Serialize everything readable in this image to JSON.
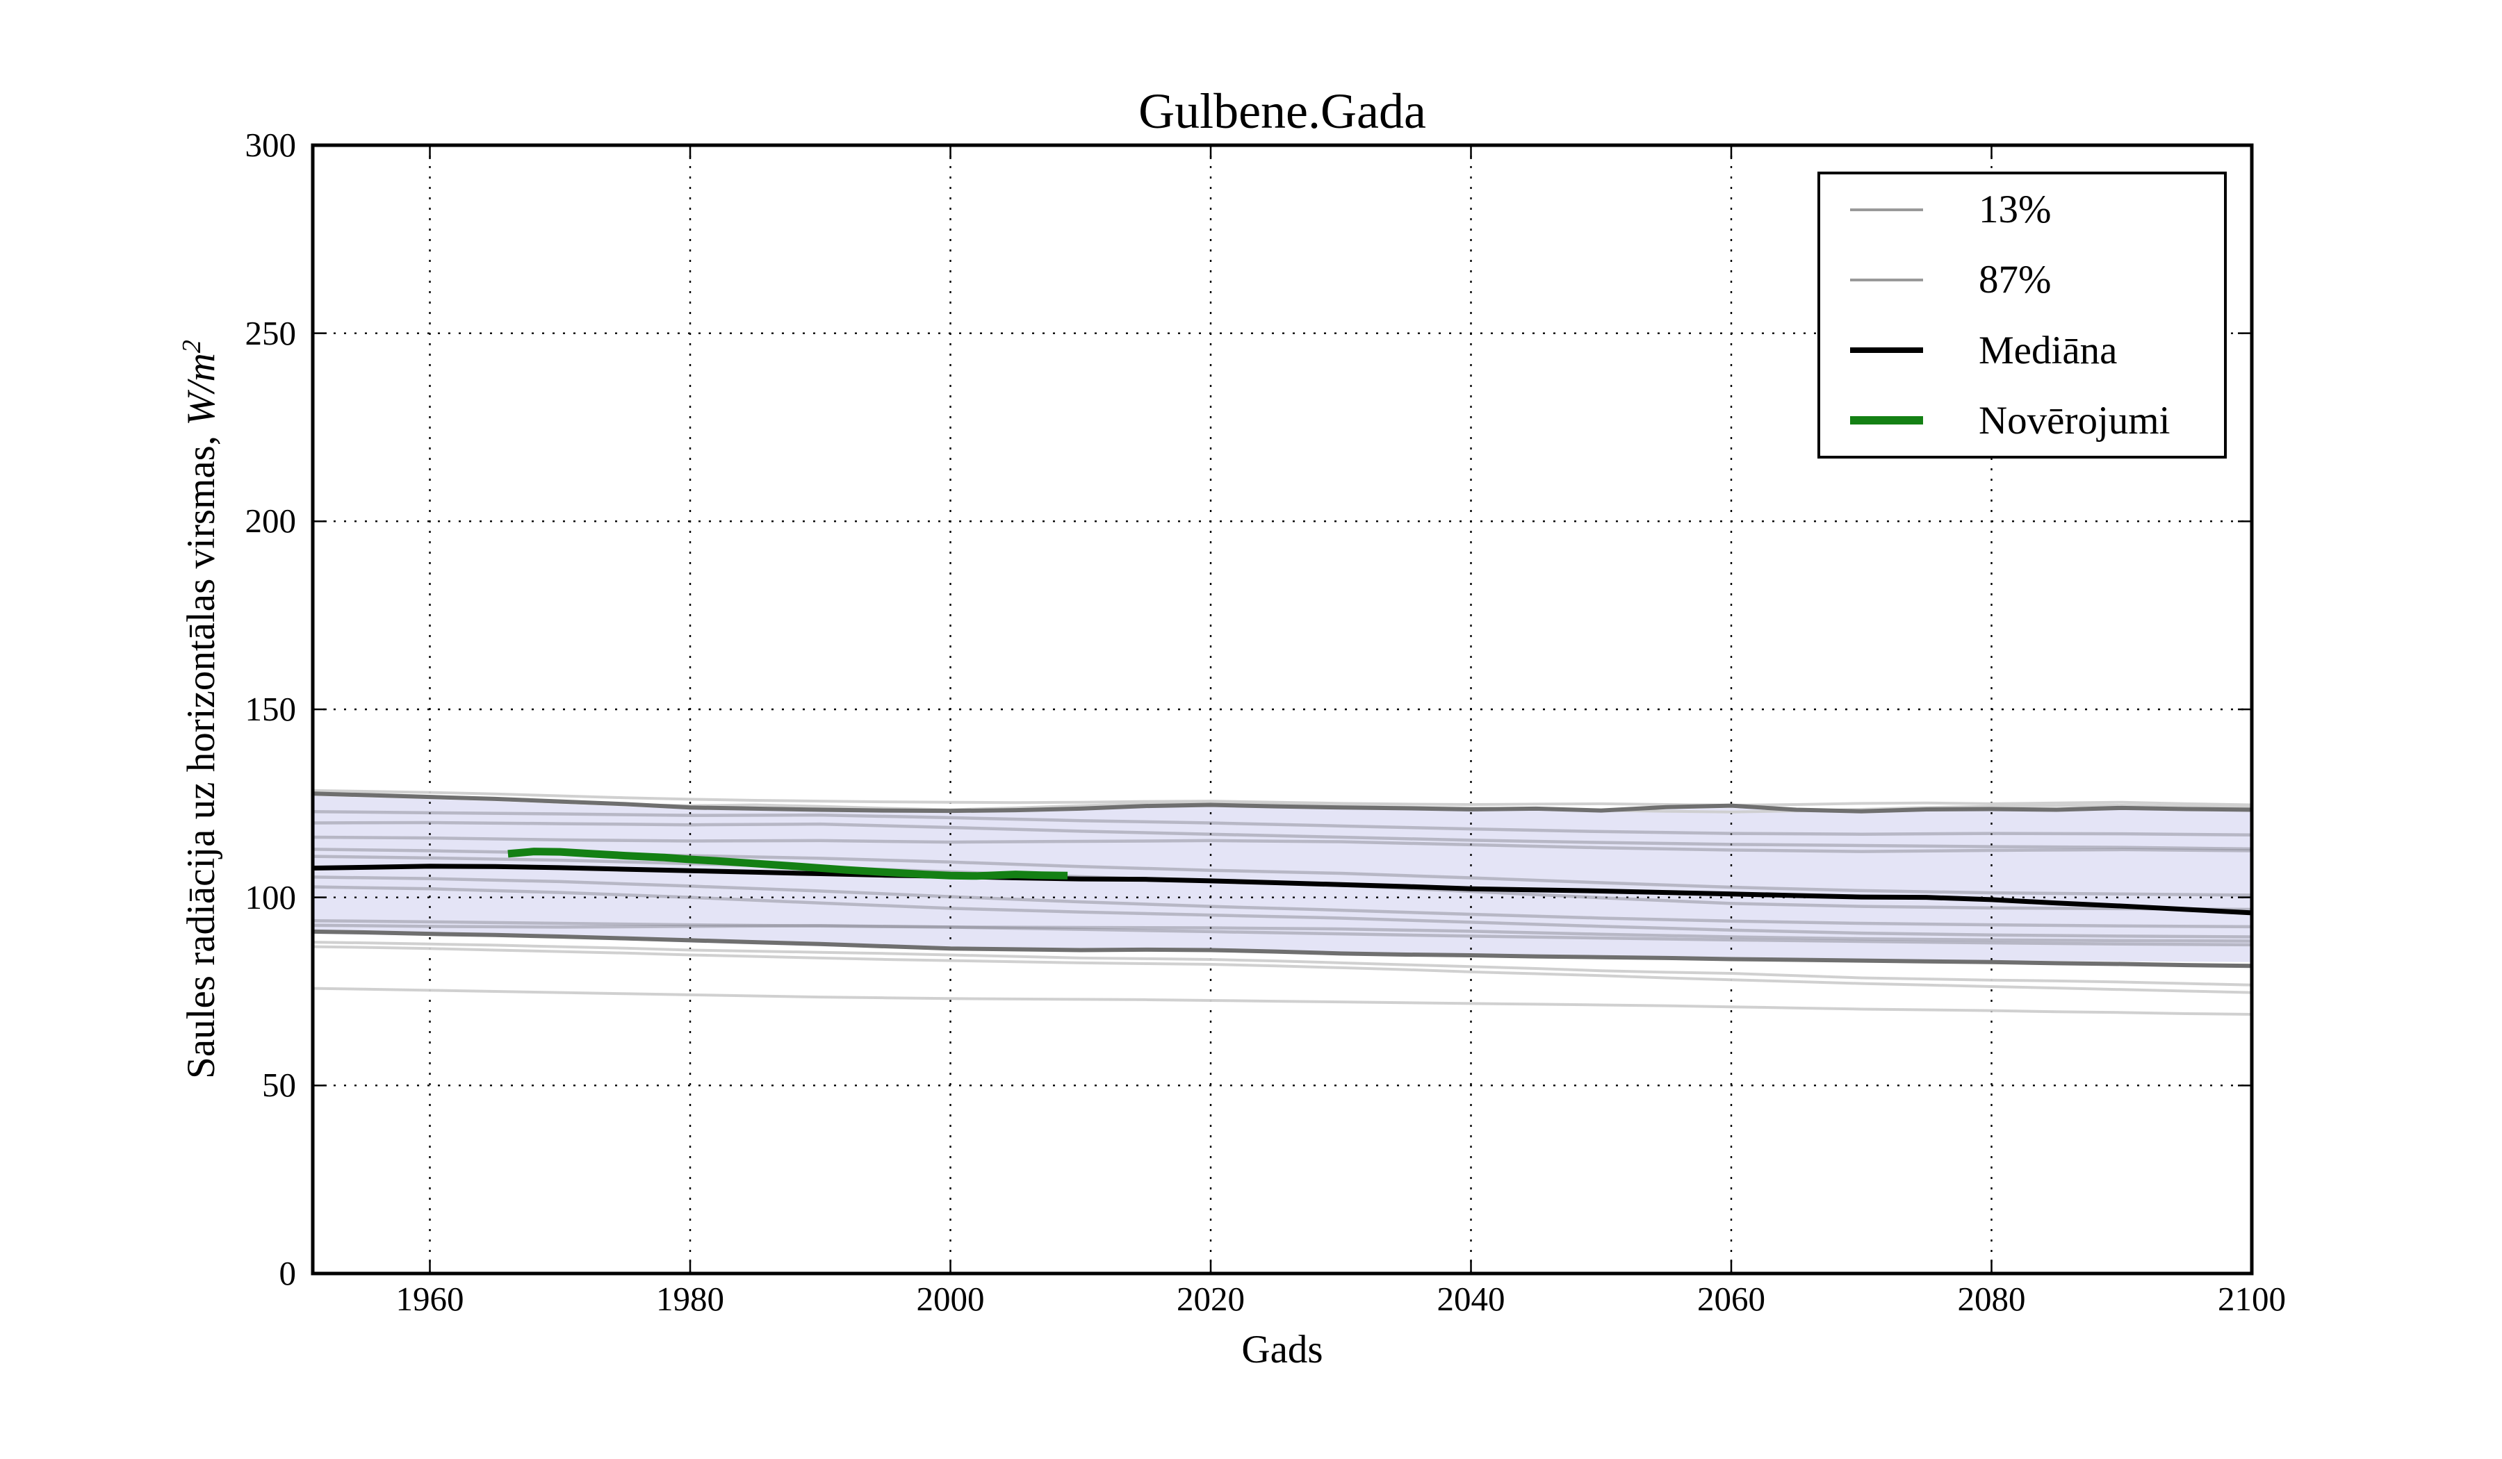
{
  "title": "Gulbene.Gada",
  "legend": {
    "position": "upper right",
    "items": [
      {
        "label": "13%",
        "color": "#999999",
        "line_width": 4
      },
      {
        "label": "87%",
        "color": "#999999",
        "line_width": 4
      },
      {
        "label": "Mediāna",
        "color": "#000000",
        "line_width": 8
      },
      {
        "label": "Novērojumi",
        "color": "#148014",
        "line_width": 12
      }
    ]
  },
  "colors": {
    "background": "#ffffff",
    "band_fill": "#E4E4F6",
    "light_gray_line": "#CDCDCD",
    "medium_gray_line": "#8A8A94",
    "dark_gray_line": "#6F6F6F",
    "median_line": "#000000",
    "observations_line": "#148014",
    "grid": "#000000",
    "spine": "#000000"
  },
  "chart_data": {
    "type": "line",
    "title": "Gulbene.Gada",
    "xlabel": "Gads",
    "ylabel": "Saules radiācija uz horizontālas virsmas, W/m²",
    "ylabel_prefix": "Saules radiācija uz horizontālas virsmas, ",
    "ylabel_math": {
      "base": "W/m",
      "sup": "2"
    },
    "xlim": [
      1951,
      2100
    ],
    "ylim": [
      0,
      300
    ],
    "xticks": [
      1960,
      1980,
      2000,
      2020,
      2040,
      2060,
      2080,
      2100
    ],
    "yticks": [
      0,
      50,
      100,
      150,
      200,
      250,
      300
    ],
    "grid": true,
    "grid_style": "dotted",
    "legend_position": "upper right",
    "x5": [
      1951,
      1955,
      1960,
      1965,
      1970,
      1975,
      1980,
      1985,
      1990,
      1995,
      2000,
      2005,
      2010,
      2015,
      2020,
      2025,
      2030,
      2035,
      2040,
      2045,
      2050,
      2055,
      2060,
      2065,
      2070,
      2075,
      2080,
      2085,
      2090,
      2095,
      2100
    ],
    "x10": [
      1951,
      1960,
      1970,
      1980,
      1990,
      2000,
      2010,
      2020,
      2030,
      2040,
      2050,
      2060,
      2070,
      2080,
      2090,
      2100
    ],
    "band": {
      "x": "x5",
      "top": [
        127.0,
        126.6,
        126.1,
        125.6,
        124.9,
        124.2,
        123.4,
        123.1,
        122.8,
        122.6,
        122.5,
        122.7,
        123.1,
        123.8,
        124.1,
        123.7,
        123.4,
        123.2,
        122.9,
        123.1,
        122.6,
        123.4,
        123.8,
        122.8,
        122.4,
        122.9,
        123.0,
        122.8,
        123.3,
        123.0,
        122.8
      ],
      "bottom": [
        90.3,
        90.1,
        89.8,
        89.5,
        89.1,
        88.6,
        88.0,
        87.5,
        87.0,
        86.5,
        86.1,
        86.0,
        85.9,
        85.9,
        85.8,
        85.4,
        85.0,
        84.7,
        84.5,
        84.2,
        84.0,
        83.9,
        83.7,
        83.6,
        83.5,
        83.4,
        83.3,
        83.1,
        83.0,
        82.9,
        82.8
      ],
      "color": "#E4E4F6"
    },
    "series": [
      {
        "name": "ensemble-light-top-1",
        "role": "ensemble-line",
        "color": "#CDCDCD",
        "width": 4,
        "opacity": 0.95,
        "x": "x5",
        "y": [
          128.4,
          128.2,
          127.9,
          127.5,
          127.0,
          126.5,
          126.1,
          125.8,
          125.6,
          125.4,
          125.3,
          125.2,
          125.3,
          125.5,
          125.6,
          125.3,
          125.0,
          124.8,
          124.7,
          124.8,
          124.9,
          124.7,
          124.5,
          124.7,
          125.0,
          125.1,
          124.9,
          125.1,
          125.3,
          124.9,
          124.6
        ]
      },
      {
        "name": "ensemble-light-top-2",
        "role": "ensemble-line",
        "color": "#CDCDCD",
        "width": 4,
        "opacity": 0.95,
        "x": "x5",
        "y": [
          127.9,
          127.5,
          126.9,
          126.1,
          125.3,
          124.7,
          124.4,
          124.6,
          124.2,
          123.7,
          123.3,
          123.8,
          124.4,
          124.9,
          125.2,
          124.8,
          124.3,
          124.0,
          123.8,
          123.5,
          123.2,
          122.9,
          122.7,
          123.0,
          123.4,
          123.9,
          124.2,
          124.4,
          124.5,
          124.2,
          123.9
        ]
      },
      {
        "name": "ensemble-light-low-1",
        "role": "ensemble-line",
        "color": "#CDCDCD",
        "width": 4,
        "opacity": 0.95,
        "x": "x5",
        "y": [
          88.1,
          87.9,
          87.6,
          87.3,
          86.9,
          86.5,
          86.0,
          85.7,
          85.4,
          85.1,
          84.7,
          84.3,
          83.9,
          83.7,
          83.5,
          83.1,
          82.6,
          82.1,
          81.6,
          81.1,
          80.5,
          80.1,
          79.8,
          79.2,
          78.6,
          78.3,
          78.0,
          77.8,
          77.5,
          77.1,
          76.7
        ]
      },
      {
        "name": "ensemble-light-low-2",
        "role": "ensemble-line",
        "color": "#CDCDCD",
        "width": 4,
        "opacity": 0.95,
        "x": "x5",
        "y": [
          86.9,
          86.7,
          86.4,
          86.0,
          85.6,
          85.2,
          84.7,
          84.3,
          83.9,
          83.5,
          83.2,
          82.9,
          82.6,
          82.4,
          82.2,
          81.8,
          81.3,
          80.8,
          80.2,
          79.7,
          79.2,
          78.6,
          78.1,
          77.6,
          77.1,
          76.7,
          76.3,
          75.9,
          75.5,
          75.1,
          74.7
        ]
      },
      {
        "name": "ensemble-light-lowest",
        "role": "ensemble-line",
        "color": "#CDCDCD",
        "width": 4,
        "opacity": 0.95,
        "x": "x5",
        "y": [
          75.8,
          75.6,
          75.3,
          75.0,
          74.7,
          74.4,
          74.1,
          73.8,
          73.5,
          73.3,
          73.1,
          73.0,
          72.9,
          72.8,
          72.6,
          72.4,
          72.2,
          72.0,
          71.8,
          71.6,
          71.4,
          71.2,
          70.9,
          70.6,
          70.3,
          70.1,
          69.9,
          69.6,
          69.4,
          69.1,
          68.9
        ]
      },
      {
        "name": "ensemble-mid-1",
        "role": "ensemble-line",
        "color": "#8A8A94",
        "width": 4.5,
        "opacity": 0.5,
        "x": "x10",
        "y": [
          122.8,
          122.5,
          122.2,
          121.8,
          121.9,
          121.2,
          120.4,
          119.8,
          119.0,
          118.2,
          117.5,
          117.0,
          116.8,
          117.0,
          116.9,
          116.6
        ]
      },
      {
        "name": "ensemble-mid-2",
        "role": "ensemble-line",
        "color": "#8A8A94",
        "width": 4.5,
        "opacity": 0.5,
        "x": "x10",
        "y": [
          119.8,
          119.9,
          119.6,
          119.3,
          119.5,
          118.6,
          117.6,
          116.8,
          116.0,
          115.2,
          114.6,
          114.1,
          113.8,
          113.5,
          113.3,
          112.9
        ]
      },
      {
        "name": "ensemble-mid-3",
        "role": "ensemble-line",
        "color": "#8A8A94",
        "width": 4.5,
        "opacity": 0.5,
        "x": "x10",
        "y": [
          116.0,
          115.8,
          115.3,
          115.0,
          115.1,
          114.7,
          114.9,
          115.1,
          114.8,
          114.0,
          113.2,
          112.6,
          112.2,
          112.5,
          112.7,
          112.4
        ]
      },
      {
        "name": "ensemble-mid-4",
        "role": "ensemble-line",
        "color": "#8A8A94",
        "width": 4.5,
        "opacity": 0.5,
        "x": "x10",
        "y": [
          112.8,
          112.4,
          111.8,
          111.1,
          110.4,
          109.4,
          108.2,
          107.2,
          106.4,
          105.2,
          103.9,
          102.7,
          101.8,
          101.2,
          100.9,
          100.6
        ]
      },
      {
        "name": "ensemble-mid-5",
        "role": "ensemble-line",
        "color": "#8A8A94",
        "width": 4.5,
        "opacity": 0.5,
        "x": "x10",
        "y": [
          110.9,
          110.5,
          109.9,
          109.0,
          108.0,
          106.8,
          105.5,
          104.3,
          103.2,
          101.6,
          99.9,
          98.4,
          97.6,
          97.2,
          97.0,
          96.8
        ]
      },
      {
        "name": "ensemble-mid-6",
        "role": "ensemble-line",
        "color": "#8A8A94",
        "width": 4.5,
        "opacity": 0.5,
        "x": "x10",
        "y": [
          105.4,
          105.0,
          104.2,
          103.0,
          101.7,
          100.2,
          98.8,
          97.6,
          96.6,
          95.5,
          94.5,
          93.7,
          93.1,
          92.7,
          92.4,
          92.2
        ]
      },
      {
        "name": "ensemble-mid-7",
        "role": "ensemble-line",
        "color": "#8A8A94",
        "width": 4.5,
        "opacity": 0.5,
        "x": "x10",
        "y": [
          102.8,
          102.3,
          101.3,
          100.0,
          98.5,
          97.1,
          96.1,
          95.3,
          94.5,
          93.4,
          92.3,
          91.3,
          90.5,
          90.0,
          89.7,
          89.5
        ]
      },
      {
        "name": "ensemble-mid-8",
        "role": "ensemble-line",
        "color": "#8A8A94",
        "width": 4.5,
        "opacity": 0.5,
        "x": "x10",
        "y": [
          93.8,
          93.5,
          93.1,
          92.7,
          92.4,
          92.1,
          92.0,
          91.9,
          91.6,
          91.0,
          90.2,
          89.5,
          89.0,
          88.7,
          88.5,
          88.4
        ]
      },
      {
        "name": "ensemble-mid-9",
        "role": "ensemble-line",
        "color": "#8A8A94",
        "width": 4.5,
        "opacity": 0.5,
        "x": "x10",
        "y": [
          92.6,
          92.3,
          92.1,
          92.3,
          92.5,
          92.1,
          91.5,
          90.9,
          90.3,
          89.7,
          89.2,
          88.7,
          88.3,
          87.9,
          87.6,
          87.4
        ]
      },
      {
        "name": "87%",
        "role": "percentile-87-line",
        "color": "#6F6F6F",
        "width": 6,
        "opacity": 1,
        "x": "x5",
        "y": [
          127.6,
          127.2,
          126.7,
          126.2,
          125.5,
          124.8,
          123.9,
          123.6,
          123.3,
          123.1,
          123.0,
          123.2,
          123.6,
          124.3,
          124.6,
          124.2,
          123.9,
          123.7,
          123.4,
          123.6,
          123.1,
          124.0,
          124.4,
          123.3,
          122.9,
          123.4,
          123.5,
          123.3,
          123.8,
          123.5,
          123.3
        ]
      },
      {
        "name": "13%",
        "role": "percentile-13-line",
        "color": "#6F6F6F",
        "width": 6,
        "opacity": 1,
        "x": "x5",
        "y": [
          90.9,
          90.7,
          90.3,
          90.0,
          89.6,
          89.1,
          88.6,
          88.1,
          87.6,
          87.0,
          86.4,
          86.2,
          86.0,
          86.1,
          86.0,
          85.6,
          85.1,
          84.8,
          84.6,
          84.3,
          84.1,
          83.9,
          83.6,
          83.4,
          83.2,
          83.0,
          82.8,
          82.5,
          82.3,
          82.0,
          81.8
        ]
      },
      {
        "name": "Mediāna",
        "role": "median-line",
        "color": "#000000",
        "width": 7,
        "opacity": 1,
        "x": "x5",
        "y": [
          107.8,
          108.0,
          108.3,
          108.2,
          107.9,
          107.5,
          107.1,
          106.7,
          106.3,
          105.9,
          105.6,
          105.2,
          104.9,
          104.8,
          104.4,
          103.9,
          103.4,
          102.9,
          102.3,
          102.0,
          101.7,
          101.3,
          100.9,
          100.5,
          100.1,
          100.0,
          99.4,
          98.5,
          97.7,
          96.8,
          95.9
        ]
      },
      {
        "name": "Novērojumi",
        "role": "observations-line",
        "color": "#148014",
        "width": 11,
        "opacity": 1,
        "x": [
          1966,
          1968,
          1970,
          1972,
          1975,
          1978,
          1980,
          1982,
          1985,
          1988,
          1990,
          1992,
          1995,
          1998,
          2000,
          2002,
          2005,
          2007,
          2009
        ],
        "y": [
          111.6,
          112.2,
          112.1,
          111.7,
          111.1,
          110.6,
          110.1,
          109.7,
          109.0,
          108.3,
          107.8,
          107.3,
          106.7,
          106.1,
          105.8,
          105.7,
          106.1,
          105.9,
          105.8
        ]
      }
    ]
  }
}
